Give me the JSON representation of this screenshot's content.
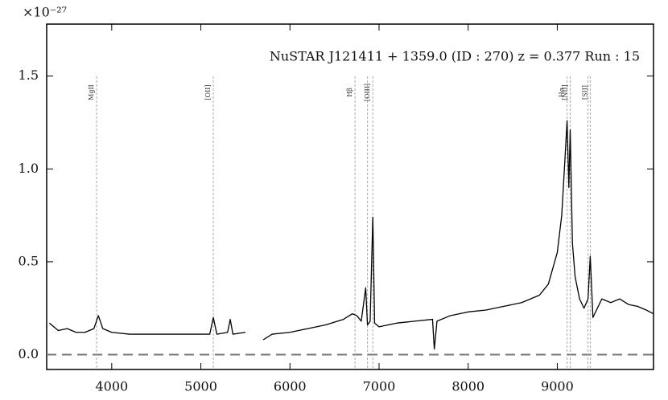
{
  "chart_data": {
    "type": "line",
    "title": "NuSTAR J121411 + 1359.0 (ID : 270)   z = 0.377   Run : 15",
    "y_multiplier": "×10⁻²⁷",
    "x": [
      3300,
      3400,
      3500,
      3600,
      3700,
      3800,
      3850,
      3900,
      4000,
      4200,
      4400,
      4600,
      4800,
      5000,
      5100,
      5140,
      5180,
      5300,
      5330,
      5360,
      5500,
      5600,
      5700,
      5800,
      6000,
      6200,
      6400,
      6600,
      6700,
      6750,
      6800,
      6850,
      6870,
      6900,
      6930,
      6950,
      7000,
      7200,
      7400,
      7600,
      7620,
      7650,
      7800,
      8000,
      8200,
      8400,
      8600,
      8800,
      8900,
      9000,
      9050,
      9080,
      9110,
      9130,
      9145,
      9170,
      9200,
      9250,
      9300,
      9345,
      9370,
      9400,
      9500,
      9600,
      9700,
      9800,
      9900,
      10000,
      10080
    ],
    "series": [
      {
        "color": "#000000",
        "values": [
          0.17,
          0.13,
          0.14,
          0.12,
          0.12,
          0.14,
          0.21,
          0.14,
          0.12,
          0.11,
          0.11,
          0.11,
          0.11,
          0.11,
          0.11,
          0.2,
          0.11,
          0.12,
          0.19,
          0.11,
          0.12,
          null,
          0.08,
          0.11,
          0.12,
          0.14,
          0.16,
          0.19,
          0.22,
          0.21,
          0.18,
          0.36,
          0.16,
          0.18,
          0.74,
          0.17,
          0.15,
          0.17,
          0.18,
          0.19,
          0.03,
          0.18,
          0.21,
          0.23,
          0.24,
          0.26,
          0.28,
          0.32,
          0.38,
          0.55,
          0.75,
          1.0,
          1.26,
          0.9,
          1.21,
          0.6,
          0.42,
          0.3,
          0.25,
          0.3,
          0.53,
          0.2,
          0.3,
          0.28,
          0.3,
          0.27,
          0.26,
          0.24,
          0.22
        ]
      }
    ],
    "xlim": [
      3270,
      10080
    ],
    "ylim": [
      -0.08,
      1.78
    ],
    "xticks": [
      4000,
      5000,
      6000,
      7000,
      8000,
      9000
    ],
    "yticks": [
      {
        "value": 0,
        "label": "0.0"
      },
      0.5,
      {
        "value": 1,
        "label": "1.0"
      },
      1.5
    ],
    "hline": 0,
    "lines": {
      "x": [
        3830,
        5140,
        6730,
        6870,
        6930,
        9110,
        9145,
        9345,
        9370
      ],
      "labels": [
        "MgII",
        "[OII]",
        "Hβ",
        null,
        "[OIII]",
        "Hα",
        "[NII]",
        null,
        "[SII]"
      ]
    }
  }
}
